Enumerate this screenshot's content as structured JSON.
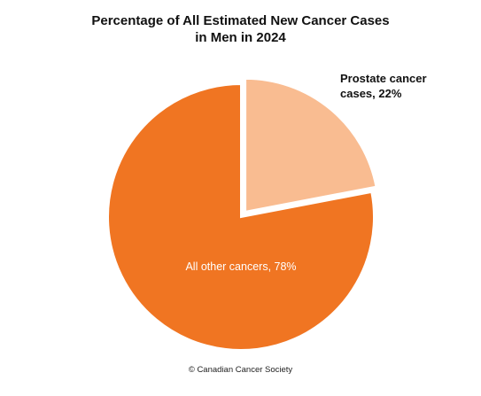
{
  "chart_data": {
    "type": "pie",
    "title_lines": [
      "Percentage of All Estimated New Cancer Cases",
      "in Men in 2024"
    ],
    "slices": [
      {
        "name": "Prostate cancer cases",
        "label_lines": [
          "Prostate cancer",
          "cases, 22%"
        ],
        "value": 22,
        "color": "#f9bc91",
        "exploded": true
      },
      {
        "name": "All other cancers",
        "label_lines": [
          "All other cancers, 78%"
        ],
        "value": 78,
        "color": "#f07522",
        "exploded": false
      }
    ],
    "start_angle_deg": 0,
    "direction": "clockwise"
  },
  "footer": {
    "credit": "© Canadian Cancer Society"
  }
}
